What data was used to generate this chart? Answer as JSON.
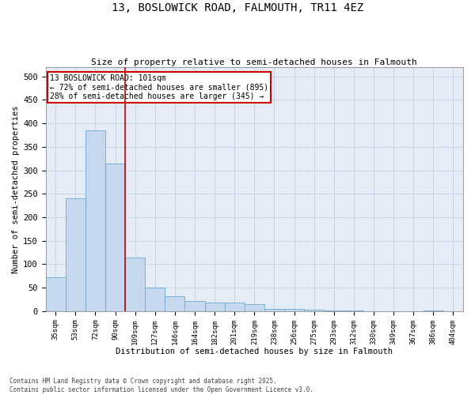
{
  "title_line1": "13, BOSLOWICK ROAD, FALMOUTH, TR11 4EZ",
  "title_line2": "Size of property relative to semi-detached houses in Falmouth",
  "xlabel": "Distribution of semi-detached houses by size in Falmouth",
  "ylabel": "Number of semi-detached properties",
  "categories": [
    "35sqm",
    "53sqm",
    "72sqm",
    "90sqm",
    "109sqm",
    "127sqm",
    "146sqm",
    "164sqm",
    "182sqm",
    "201sqm",
    "219sqm",
    "238sqm",
    "256sqm",
    "275sqm",
    "293sqm",
    "312sqm",
    "330sqm",
    "349sqm",
    "367sqm",
    "386sqm",
    "404sqm"
  ],
  "values": [
    72,
    240,
    385,
    315,
    115,
    50,
    32,
    22,
    18,
    18,
    15,
    5,
    5,
    3,
    2,
    1,
    0,
    0,
    0,
    1,
    0
  ],
  "bar_color": "#c5d8ee",
  "bar_edge_color": "#6aaad4",
  "annotation_text": "13 BOSLOWICK ROAD: 101sqm\n← 72% of semi-detached houses are smaller (895)\n28% of semi-detached houses are larger (345) →",
  "annotation_box_color": "#ffffff",
  "annotation_box_edge_color": "#cc0000",
  "vline_color": "#cc0000",
  "grid_color": "#c5d5e5",
  "bg_color": "#e5ecf5",
  "footer_text": "Contains HM Land Registry data © Crown copyright and database right 2025.\nContains public sector information licensed under the Open Government Licence v3.0.",
  "ylim": [
    0,
    520
  ],
  "yticks": [
    0,
    50,
    100,
    150,
    200,
    250,
    300,
    350,
    400,
    450,
    500
  ]
}
